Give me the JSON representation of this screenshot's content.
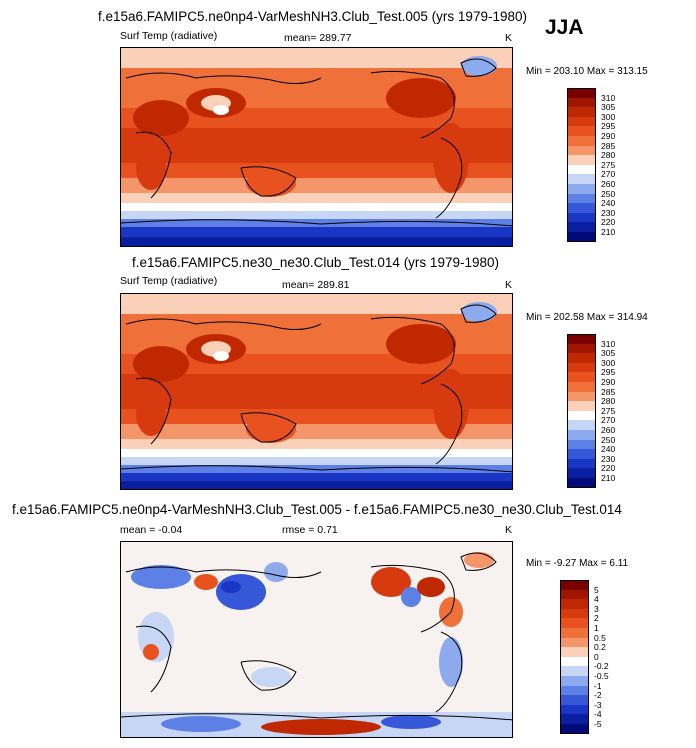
{
  "season": "JJA",
  "panels": [
    {
      "title": "f.e15a6.FAMIPC5.ne0np4-VarMeshNH3.Club_Test.005 (yrs 1979-1980)",
      "left_label": "Surf Temp (radiative)",
      "center_label": "mean= 289.77",
      "units": "K",
      "minmax": "Min = 203.10 Max = 313.15",
      "colorbar": {
        "labels": [
          "310",
          "305",
          "300",
          "295",
          "290",
          "285",
          "280",
          "275",
          "270",
          "260",
          "250",
          "240",
          "230",
          "220",
          "210"
        ],
        "colors": [
          "#7a0000",
          "#a01500",
          "#c02800",
          "#d83a10",
          "#e8521e",
          "#f0703a",
          "#f5956a",
          "#fbd0b8",
          "#ffffff",
          "#c6d6f4",
          "#8eaaee",
          "#5d80e6",
          "#3658d8",
          "#1a36c4",
          "#0a1fa0",
          "#000a78"
        ]
      }
    },
    {
      "title": "f.e15a6.FAMIPC5.ne30_ne30.Club_Test.014 (yrs 1979-1980)",
      "left_label": "Surf Temp (radiative)",
      "center_label": "mean= 289.81",
      "units": "K",
      "minmax": "Min = 202.58 Max = 314.94",
      "colorbar": {
        "labels": [
          "310",
          "305",
          "300",
          "295",
          "290",
          "285",
          "280",
          "275",
          "270",
          "260",
          "250",
          "240",
          "230",
          "220",
          "210"
        ],
        "colors": [
          "#7a0000",
          "#a01500",
          "#c02800",
          "#d83a10",
          "#e8521e",
          "#f0703a",
          "#f5956a",
          "#fbd0b8",
          "#ffffff",
          "#c6d6f4",
          "#8eaaee",
          "#5d80e6",
          "#3658d8",
          "#1a36c4",
          "#0a1fa0",
          "#000a78"
        ]
      }
    },
    {
      "title": "f.e15a6.FAMIPC5.ne0np4-VarMeshNH3.Club_Test.005 - f.e15a6.FAMIPC5.ne30_ne30.Club_Test.014",
      "left_label": "mean =  -0.04",
      "center_label": "rmse =   0.71",
      "units": "K",
      "minmax": "Min =  -9.27 Max =   6.11",
      "colorbar": {
        "labels": [
          "5",
          "4",
          "3",
          "2",
          "1",
          "0.5",
          "0.2",
          "0",
          "-0.2",
          "-0.5",
          "-1",
          "-2",
          "-3",
          "-4",
          "-5"
        ],
        "colors": [
          "#7a0000",
          "#a01500",
          "#c02800",
          "#d83a10",
          "#e8521e",
          "#f0703a",
          "#f5956a",
          "#fbd0b8",
          "#ffffff",
          "#c6d6f4",
          "#8eaaee",
          "#5d80e6",
          "#3658d8",
          "#1a36c4",
          "#0a1fa0",
          "#000a78"
        ]
      }
    }
  ]
}
